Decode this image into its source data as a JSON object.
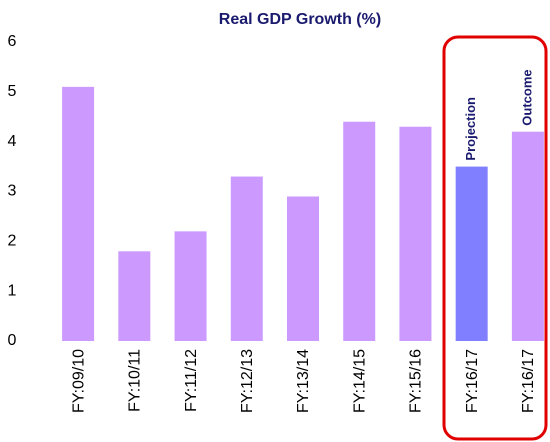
{
  "chart_data": {
    "type": "bar",
    "title": "Real GDP Growth (%)",
    "categories": [
      "FY:09/10",
      "FY:10/11",
      "FY:11/12",
      "FY:12/13",
      "FY:13/14",
      "FY:14/15",
      "FY:15/16",
      "FY:16/17",
      "FY:16/17"
    ],
    "values": [
      5.1,
      1.8,
      2.2,
      3.3,
      2.9,
      4.4,
      4.3,
      3.5,
      4.2
    ],
    "colors": [
      "#cc99ff",
      "#cc99ff",
      "#cc99ff",
      "#cc99ff",
      "#cc99ff",
      "#cc99ff",
      "#cc99ff",
      "#7f7fff",
      "#cc99ff"
    ],
    "annotations": [
      "Projection",
      "Outcome"
    ],
    "ylim": [
      0,
      6
    ],
    "yticks": [
      0,
      1,
      2,
      3,
      4,
      5,
      6
    ],
    "grid": false
  }
}
